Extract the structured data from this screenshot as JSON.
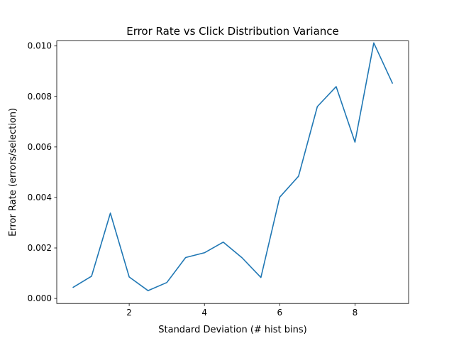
{
  "chart_data": {
    "type": "line",
    "title": "Error Rate vs Click Distribution Variance",
    "xlabel": "Standard Deviation (# hist bins)",
    "ylabel": "Error Rate (errors/selection)",
    "xlim": [
      0.075,
      9.425
    ],
    "ylim": [
      -0.0002,
      0.0102
    ],
    "xticks": [
      2,
      4,
      6,
      8
    ],
    "yticks": [
      0.0,
      0.002,
      0.004,
      0.006,
      0.008,
      0.01
    ],
    "xtick_labels": [
      "2",
      "4",
      "6",
      "8"
    ],
    "ytick_labels": [
      "0.000",
      "0.002",
      "0.004",
      "0.006",
      "0.008",
      "0.010"
    ],
    "grid": false,
    "series": [
      {
        "color": "#1f77b4",
        "x": [
          0.5,
          1.0,
          1.5,
          2.0,
          2.5,
          3.0,
          3.5,
          4.0,
          4.5,
          5.0,
          5.5,
          6.0,
          6.5,
          7.0,
          7.5,
          8.0,
          8.5,
          9.0
        ],
        "y": [
          0.00043,
          0.00088,
          0.00338,
          0.00085,
          0.00031,
          0.00063,
          0.00162,
          0.00181,
          0.00223,
          0.00161,
          0.00083,
          0.00401,
          0.00484,
          0.0076,
          0.00839,
          0.00619,
          0.01012,
          0.00851
        ]
      }
    ]
  }
}
